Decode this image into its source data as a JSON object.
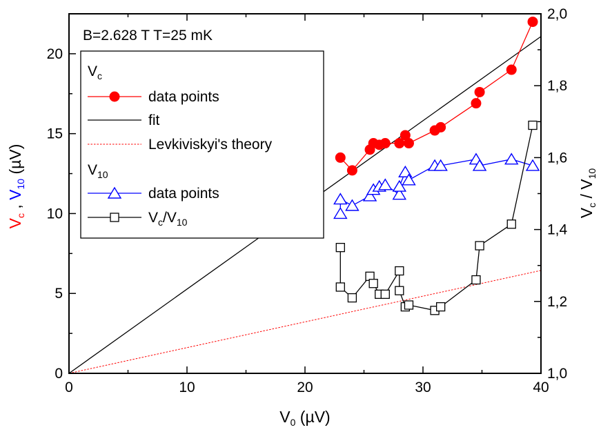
{
  "chart_data": {
    "type": "scatter",
    "annotation": "B=2.628 T   T=25 mK",
    "xlabel": {
      "main": "V",
      "sub": "0",
      "unit": " (µV)"
    },
    "ylabel_left": {
      "p1": "V",
      "p1_sub": "c",
      "sep": " , ",
      "p2": "V",
      "p2_sub": "10",
      "unit": "  (µV)",
      "p1_color": "#ff0000",
      "p2_color": "#0000ff",
      "unit_color": "#000000"
    },
    "ylabel_right": {
      "p1": "V",
      "p1_sub": "c",
      "sep": " / ",
      "p2": "V",
      "p2_sub": "10"
    },
    "xlim": [
      0,
      40
    ],
    "ylim_left": [
      0,
      22.5
    ],
    "ylim_right": [
      1.0,
      2.0
    ],
    "x_ticks": [
      "0",
      "10",
      "20",
      "30",
      "40"
    ],
    "y_left_ticks": [
      "0",
      "5",
      "10",
      "15",
      "20"
    ],
    "y_right_ticks": [
      "1,0",
      "1,2",
      "1,4",
      "1,6",
      "1,8",
      "2,0"
    ],
    "legend": {
      "group1_title": "V",
      "group1_title_sub": "c",
      "group2_title": "V",
      "group2_title_sub": "10",
      "entries": {
        "vc_points": "data points",
        "fit": "fit",
        "theory": "Levkiviskyi's theory",
        "v10_points": "data points",
        "ratio_main": "V",
        "ratio_sub1": "c",
        "ratio_slash": "/",
        "ratio_main2": "V",
        "ratio_sub2": "10"
      }
    },
    "colors": {
      "vc": "#ff0000",
      "v10": "#0000ff",
      "ratio": "#000000",
      "fit": "#000000",
      "theory": "#ff0000"
    },
    "series": [
      {
        "key": "vc",
        "name": "data points",
        "axis": "left",
        "marker": "filled-circle",
        "connected": true,
        "x": [
          23.0,
          24.0,
          25.5,
          25.8,
          26.3,
          26.8,
          28.0,
          28.5,
          28.8,
          31.0,
          31.5,
          34.5,
          34.8,
          37.5,
          39.3
        ],
        "y": [
          13.5,
          12.7,
          14.0,
          14.4,
          14.3,
          14.4,
          14.4,
          14.9,
          14.4,
          15.2,
          15.4,
          16.9,
          17.6,
          19.0,
          22.0
        ]
      },
      {
        "key": "v10",
        "name": "data points",
        "axis": "left",
        "marker": "open-triangle",
        "connected": true,
        "x": [
          23.0,
          23.0,
          24.0,
          25.5,
          25.8,
          26.3,
          26.8,
          28.0,
          28.0,
          28.5,
          28.8,
          31.0,
          31.5,
          34.5,
          34.8,
          37.5,
          39.3
        ],
        "y": [
          10.0,
          10.9,
          10.5,
          11.1,
          11.5,
          11.7,
          11.8,
          11.2,
          11.7,
          12.6,
          12.1,
          13.0,
          13.0,
          13.4,
          13.0,
          13.4,
          13.0
        ]
      },
      {
        "key": "ratio",
        "name": "Vc/V10",
        "axis": "right",
        "marker": "open-square",
        "connected": true,
        "x": [
          23.0,
          23.0,
          24.0,
          25.5,
          25.8,
          26.3,
          26.8,
          28.0,
          28.0,
          28.5,
          28.8,
          31.0,
          31.5,
          34.5,
          34.8,
          37.5,
          39.3
        ],
        "y": [
          1.35,
          1.24,
          1.21,
          1.27,
          1.25,
          1.22,
          1.22,
          1.285,
          1.23,
          1.185,
          1.19,
          1.175,
          1.185,
          1.26,
          1.355,
          1.415,
          1.69
        ]
      }
    ],
    "fit_line": {
      "slope": 0.527,
      "intercept": 0.0
    },
    "theory_line": {
      "slope": 0.161,
      "intercept": 0.0
    }
  }
}
